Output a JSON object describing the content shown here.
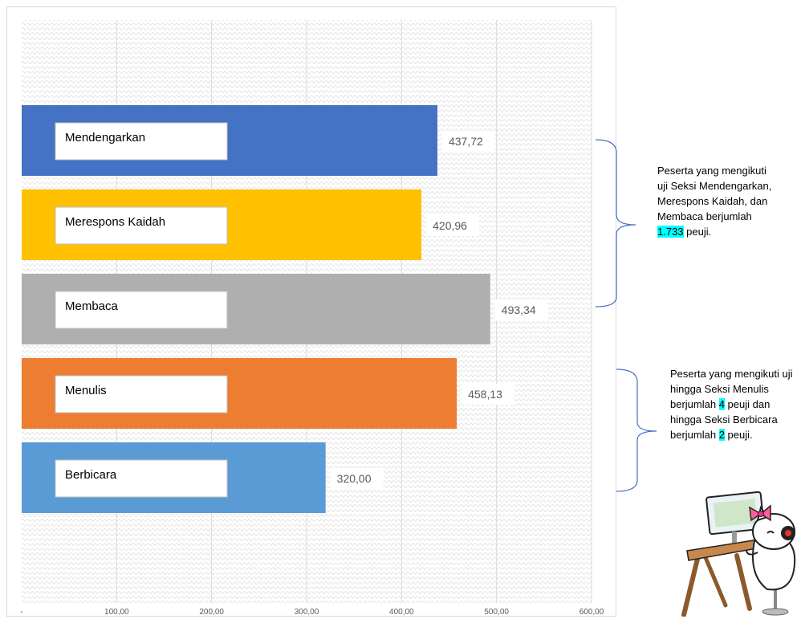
{
  "chart_data": {
    "type": "bar",
    "orientation": "horizontal",
    "categories": [
      "Mendengarkan",
      "Merespons Kaidah",
      "Membaca",
      "Menulis",
      "Berbicara"
    ],
    "values": [
      437.72,
      420.96,
      493.34,
      458.13,
      320.0
    ],
    "value_labels": [
      "437,72",
      "420,96",
      "493,34",
      "458,13",
      "320,00"
    ],
    "colors": [
      "#4472c4",
      "#ffc000",
      "#afafaf",
      "#ed7d31",
      "#5b9bd5"
    ],
    "xlim": [
      0,
      600
    ],
    "x_ticks": [
      0,
      100,
      200,
      300,
      400,
      500,
      600
    ],
    "x_tick_labels": [
      "-",
      "100,00",
      "200,00",
      "300,00",
      "400,00",
      "500,00",
      "600,00"
    ],
    "grid": "vertical",
    "title": "",
    "xlabel": "",
    "ylabel": ""
  },
  "annotations": {
    "group1": {
      "pre": "Peserta yang mengikuti uji Seksi Mendengarkan, Merespons Kaidah, dan Membaca berjumlah ",
      "highlight": "1.733",
      "post": " peuji."
    },
    "group2": {
      "pre": "Peserta yang mengikuti uji hingga Seksi Menulis berjumlah ",
      "hl1": "4",
      "mid": " peuji dan hingga Seksi Berbicara berjumlah ",
      "hl2": "2",
      "post": " peuji."
    },
    "bracket_color": "#4472c4",
    "highlight_color": "#00ffff"
  },
  "mascot": {
    "icon": "cat-mascot-at-desk-icon"
  }
}
